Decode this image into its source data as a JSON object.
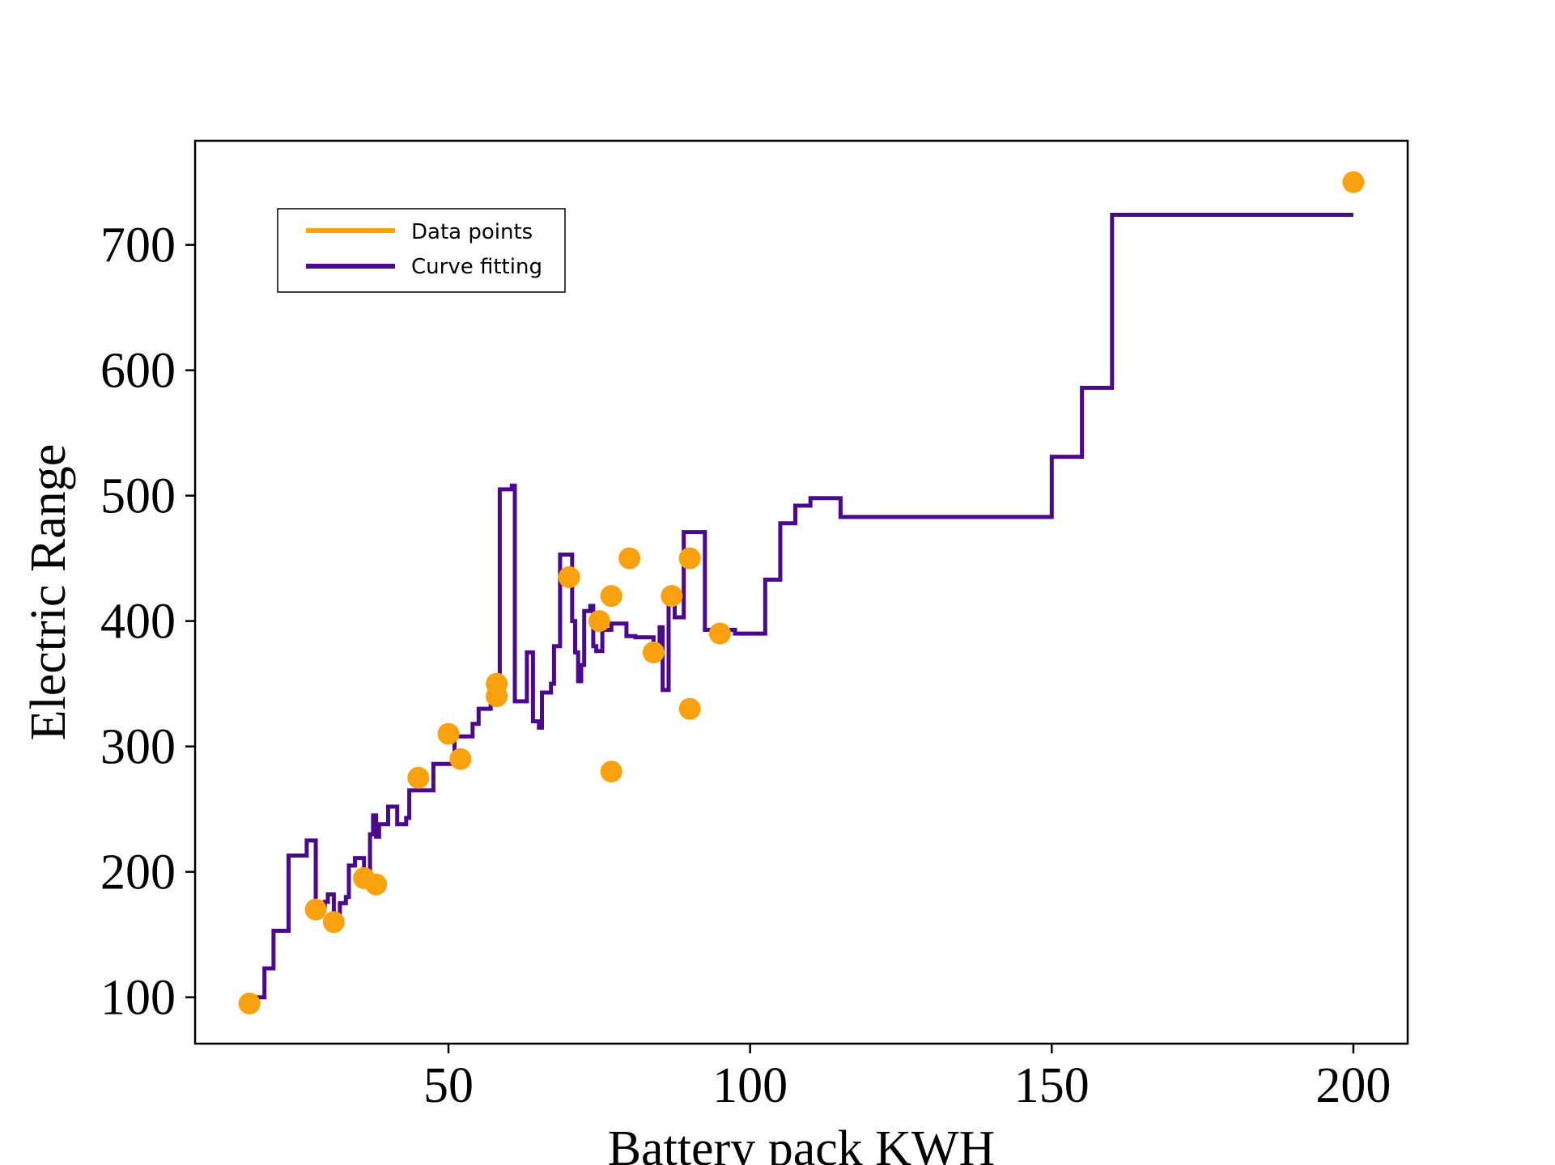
{
  "chart_data": {
    "type": "scatter",
    "title": "",
    "xlabel": "Battery pack KWH",
    "ylabel": "Electric Range",
    "xlim": [
      8,
      209
    ],
    "ylim": [
      63,
      783
    ],
    "xticks": [
      50,
      100,
      150,
      200
    ],
    "yticks": [
      100,
      200,
      300,
      400,
      500,
      600,
      700
    ],
    "grid": false,
    "legend_position": "top-left",
    "colors": {
      "points": "#f9a10f",
      "curve": "#4b0a8e"
    },
    "series": [
      {
        "name": "Data points",
        "kind": "scatter",
        "points": [
          [
            17,
            95
          ],
          [
            28,
            170
          ],
          [
            31,
            160
          ],
          [
            36,
            195
          ],
          [
            38,
            190
          ],
          [
            45,
            275
          ],
          [
            50,
            310
          ],
          [
            52,
            290
          ],
          [
            58,
            350
          ],
          [
            58,
            340
          ],
          [
            70,
            435
          ],
          [
            75,
            400
          ],
          [
            77,
            420
          ],
          [
            77,
            280
          ],
          [
            80,
            450
          ],
          [
            84,
            375
          ],
          [
            87,
            420
          ],
          [
            90,
            450
          ],
          [
            90,
            330
          ],
          [
            95,
            390
          ],
          [
            200,
            750
          ]
        ]
      },
      {
        "name": "Curve fitting",
        "kind": "step-line",
        "points": [
          [
            17,
            100
          ],
          [
            19.5,
            100
          ],
          [
            19.5,
            123
          ],
          [
            21,
            123
          ],
          [
            21,
            153
          ],
          [
            23.5,
            153
          ],
          [
            23.5,
            213
          ],
          [
            26.5,
            213
          ],
          [
            26.5,
            225
          ],
          [
            28,
            225
          ],
          [
            28,
            172
          ],
          [
            29.5,
            172
          ],
          [
            29.5,
            176
          ],
          [
            30,
            176
          ],
          [
            30,
            182
          ],
          [
            31,
            182
          ],
          [
            31,
            165
          ],
          [
            32,
            165
          ],
          [
            32,
            175
          ],
          [
            33,
            175
          ],
          [
            33,
            180
          ],
          [
            33.5,
            180
          ],
          [
            33.5,
            205
          ],
          [
            34.5,
            205
          ],
          [
            34.5,
            211
          ],
          [
            36,
            211
          ],
          [
            36,
            200
          ],
          [
            37,
            200
          ],
          [
            37,
            230
          ],
          [
            37.5,
            230
          ],
          [
            37.5,
            245
          ],
          [
            38,
            245
          ],
          [
            38,
            228
          ],
          [
            38.5,
            228
          ],
          [
            38.5,
            238
          ],
          [
            40,
            238
          ],
          [
            40,
            252
          ],
          [
            41.5,
            252
          ],
          [
            41.5,
            238
          ],
          [
            43,
            238
          ],
          [
            43,
            243
          ],
          [
            43.5,
            243
          ],
          [
            43.5,
            265
          ],
          [
            47.5,
            265
          ],
          [
            47.5,
            286
          ],
          [
            51,
            286
          ],
          [
            51,
            308
          ],
          [
            54,
            308
          ],
          [
            54,
            318
          ],
          [
            55,
            318
          ],
          [
            55,
            330
          ],
          [
            57,
            330
          ],
          [
            57,
            335
          ],
          [
            58.5,
            335
          ],
          [
            58.5,
            505
          ],
          [
            60.5,
            505
          ],
          [
            60.5,
            508
          ],
          [
            61,
            508
          ],
          [
            61,
            336
          ],
          [
            63,
            336
          ],
          [
            63,
            375
          ],
          [
            64,
            375
          ],
          [
            64,
            320
          ],
          [
            65,
            320
          ],
          [
            65,
            315
          ],
          [
            65.5,
            315
          ],
          [
            65.5,
            343
          ],
          [
            67,
            343
          ],
          [
            67,
            350
          ],
          [
            67.5,
            350
          ],
          [
            67.5,
            380
          ],
          [
            68.5,
            380
          ],
          [
            68.5,
            453
          ],
          [
            70.5,
            453
          ],
          [
            70.5,
            400
          ],
          [
            71,
            400
          ],
          [
            71,
            375
          ],
          [
            71.5,
            375
          ],
          [
            71.5,
            352
          ],
          [
            72,
            352
          ],
          [
            72,
            365
          ],
          [
            72.5,
            365
          ],
          [
            72.5,
            408
          ],
          [
            73.5,
            408
          ],
          [
            73.5,
            412
          ],
          [
            74,
            412
          ],
          [
            74,
            380
          ],
          [
            74.5,
            380
          ],
          [
            74.5,
            376
          ],
          [
            75.5,
            376
          ],
          [
            75.5,
            393
          ],
          [
            77,
            393
          ],
          [
            77,
            398
          ],
          [
            79.5,
            398
          ],
          [
            79.5,
            388
          ],
          [
            81,
            388
          ],
          [
            81,
            387
          ],
          [
            84,
            387
          ],
          [
            84,
            370
          ],
          [
            84.5,
            370
          ],
          [
            84.5,
            380
          ],
          [
            85,
            380
          ],
          [
            85,
            395
          ],
          [
            85.5,
            395
          ],
          [
            85.5,
            345
          ],
          [
            86.5,
            345
          ],
          [
            86.5,
            420
          ],
          [
            87.5,
            420
          ],
          [
            87.5,
            403
          ],
          [
            89,
            403
          ],
          [
            89,
            471
          ],
          [
            92.5,
            471
          ],
          [
            92.5,
            393
          ],
          [
            97.5,
            393
          ],
          [
            97.5,
            390
          ],
          [
            102.5,
            390
          ],
          [
            102.5,
            433
          ],
          [
            105,
            433
          ],
          [
            105,
            478
          ],
          [
            107.5,
            478
          ],
          [
            107.5,
            492
          ],
          [
            110,
            492
          ],
          [
            110,
            498
          ],
          [
            115,
            498
          ],
          [
            115,
            483
          ],
          [
            150,
            483
          ],
          [
            150,
            531
          ],
          [
            155,
            531
          ],
          [
            155,
            586
          ],
          [
            160,
            586
          ],
          [
            160,
            724
          ],
          [
            200,
            724
          ]
        ]
      }
    ]
  }
}
